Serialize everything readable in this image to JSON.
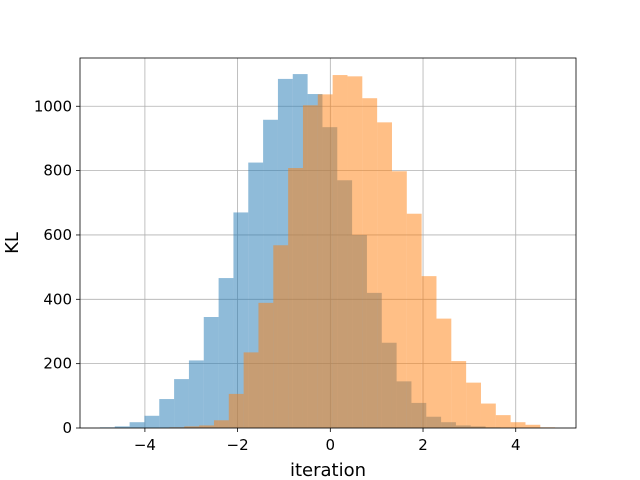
{
  "chart_data": {
    "type": "bar",
    "title": "",
    "xlabel": "iteration",
    "ylabel": "KL",
    "xlim": [
      -5.4,
      5.3
    ],
    "ylim": [
      0,
      1150
    ],
    "grid": true,
    "x_ticks": [
      -4,
      -2,
      0,
      2,
      4
    ],
    "x_tick_labels": [
      "−4",
      "−2",
      "0",
      "2",
      "4"
    ],
    "y_ticks": [
      0,
      200,
      400,
      600,
      800,
      1000
    ],
    "y_tick_labels": [
      "0",
      "200",
      "400",
      "600",
      "800",
      "1000"
    ],
    "series": [
      {
        "color": "#1f77b4",
        "opacity": 0.5,
        "bin_edges": [
          -4.97,
          -4.65,
          -4.33,
          -4.01,
          -3.69,
          -3.37,
          -3.05,
          -2.73,
          -2.41,
          -2.09,
          -1.77,
          -1.45,
          -1.13,
          -0.81,
          -0.49,
          -0.17,
          0.15,
          0.47,
          0.79,
          1.11,
          1.43,
          1.75,
          2.07,
          2.39,
          2.71,
          3.03,
          3.35,
          3.67,
          3.99,
          4.31,
          4.63,
          4.95
        ],
        "values": [
          2,
          5,
          18,
          38,
          90,
          152,
          210,
          345,
          466,
          670,
          825,
          958,
          1085,
          1100,
          1038,
          935,
          770,
          600,
          420,
          265,
          145,
          78,
          35,
          18,
          8,
          5,
          2,
          1,
          0,
          0,
          0
        ]
      },
      {
        "color": "#ff7f0e",
        "opacity": 0.5,
        "bin_edges": [
          -4.75,
          -4.43,
          -4.11,
          -3.79,
          -3.47,
          -3.15,
          -2.83,
          -2.51,
          -2.19,
          -1.87,
          -1.55,
          -1.23,
          -0.91,
          -0.59,
          -0.27,
          0.05,
          0.37,
          0.69,
          1.01,
          1.33,
          1.65,
          1.97,
          2.29,
          2.61,
          2.93,
          3.25,
          3.57,
          3.89,
          4.21,
          4.53,
          4.85
        ],
        "values": [
          0,
          0,
          0,
          0,
          2,
          5,
          8,
          24,
          106,
          235,
          389,
          568,
          808,
          1003,
          1037,
          1097,
          1093,
          1025,
          950,
          798,
          666,
          472,
          340,
          208,
          141,
          76,
          40,
          18,
          10,
          2
        ]
      }
    ]
  }
}
